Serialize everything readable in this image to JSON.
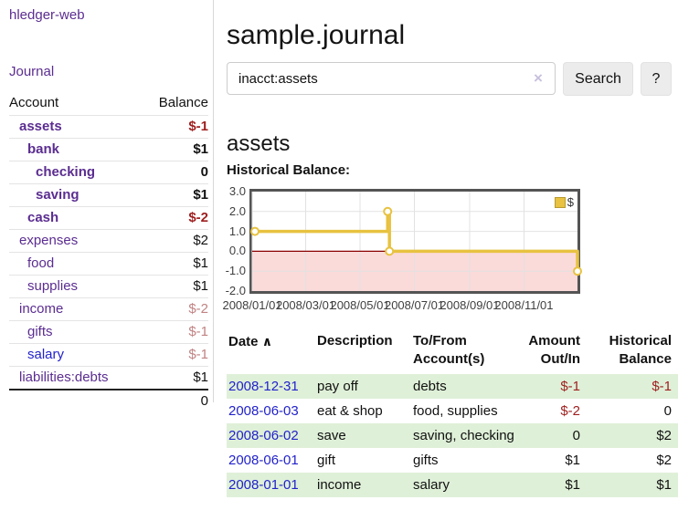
{
  "app": {
    "brand": "hledger-web",
    "nav_journal": "Journal"
  },
  "sidebar": {
    "header": {
      "account": "Account",
      "balance": "Balance"
    },
    "accounts": [
      {
        "name": "assets",
        "amount": "$-1"
      },
      {
        "name": "bank",
        "amount": "$1"
      },
      {
        "name": "checking",
        "amount": "0"
      },
      {
        "name": "saving",
        "amount": "$1"
      },
      {
        "name": "cash",
        "amount": "$-2"
      },
      {
        "name": "expenses",
        "amount": "$2"
      },
      {
        "name": "food",
        "amount": "$1"
      },
      {
        "name": "supplies",
        "amount": "$1"
      },
      {
        "name": "income",
        "amount": "$-2"
      },
      {
        "name": "gifts",
        "amount": "$-1"
      },
      {
        "name": "salary",
        "amount": "$-1"
      },
      {
        "name": "liabilities:debts",
        "amount": "$1"
      }
    ],
    "total": "0"
  },
  "main": {
    "title": "sample.journal",
    "search": {
      "value": "inacct:assets",
      "clear_icon": "×",
      "search_label": "Search",
      "help_label": "?"
    },
    "account_heading": "assets",
    "chart_heading": "Historical Balance:"
  },
  "chart_data": {
    "type": "line",
    "title": "Historical Balance:",
    "series": [
      {
        "name": "$",
        "step": true,
        "color": "#e8c240",
        "points": [
          [
            "2008-01-01",
            1
          ],
          [
            "2008-06-01",
            2
          ],
          [
            "2008-06-03",
            0
          ],
          [
            "2008-12-31",
            -1
          ]
        ]
      }
    ],
    "ylim": [
      -2,
      3
    ],
    "y_ticks": [
      3,
      2,
      1,
      0,
      -1,
      -2
    ],
    "x_range": [
      "2008-01-01",
      "2008-12-31"
    ],
    "x_ticks": [
      "2008-01-01",
      "2008-03-01",
      "2008-05-01",
      "2008-07-01",
      "2008-09-01",
      "2008-11-01"
    ],
    "grid": true,
    "legend_position": "top-right",
    "negative_region_fill": "#fbdada",
    "zero_line_color": "#8b0000",
    "grid_color": "#e2e2e2",
    "marker_fill": "#ffffff"
  },
  "table": {
    "sort_icon": "∧",
    "headers": [
      "Date",
      "Description",
      "To/From\nAccount(s)",
      "Amount\nOut/In",
      "Historical\nBalance"
    ],
    "rows": [
      {
        "date": "2008-12-31",
        "description": "pay off",
        "accounts": "debts",
        "amount": "$-1",
        "balance": "$-1"
      },
      {
        "date": "2008-06-03",
        "description": "eat & shop",
        "accounts": "food, supplies",
        "amount": "$-2",
        "balance": "0"
      },
      {
        "date": "2008-06-02",
        "description": "save",
        "accounts": "saving, checking",
        "amount": "0",
        "balance": "$2"
      },
      {
        "date": "2008-06-01",
        "description": "gift",
        "accounts": "gifts",
        "amount": "$1",
        "balance": "$2"
      },
      {
        "date": "2008-01-01",
        "description": "income",
        "accounts": "salary",
        "amount": "$1",
        "balance": "$1"
      }
    ]
  }
}
